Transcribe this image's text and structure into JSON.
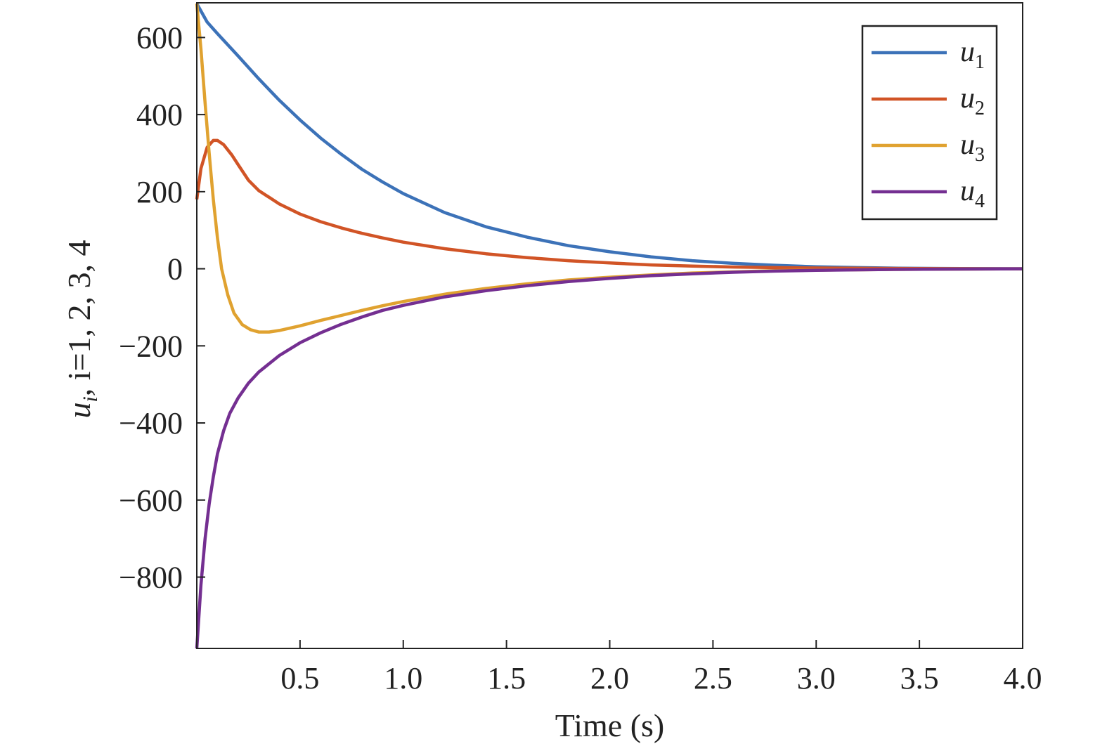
{
  "chart_data": {
    "type": "line",
    "xlabel": "Time (s)",
    "ylabel": {
      "main": "u",
      "sub": "i",
      "rest": ", i=1, 2, 3, 4"
    },
    "xlim": [
      0,
      4.0
    ],
    "ylim": [
      -985,
      690
    ],
    "x_ticks": [
      "0.5",
      "1.0",
      "1.5",
      "2.0",
      "2.5",
      "3.0",
      "3.5",
      "4.0"
    ],
    "y_ticks": [
      "600",
      "400",
      "200",
      "0",
      "−200",
      "−400",
      "−600",
      "−800"
    ],
    "grid": false,
    "legend_position": "top-right",
    "series": [
      {
        "name": "u",
        "sub": "1",
        "color": "#3c72b8",
        "points": [
          [
            0,
            688
          ],
          [
            0.05,
            640
          ],
          [
            0.1,
            610
          ],
          [
            0.2,
            552
          ],
          [
            0.3,
            493
          ],
          [
            0.4,
            437
          ],
          [
            0.5,
            386
          ],
          [
            0.6,
            339
          ],
          [
            0.7,
            297
          ],
          [
            0.8,
            258
          ],
          [
            0.9,
            225
          ],
          [
            1.0,
            195
          ],
          [
            1.2,
            146
          ],
          [
            1.4,
            109
          ],
          [
            1.6,
            82
          ],
          [
            1.8,
            60
          ],
          [
            2.0,
            44
          ],
          [
            2.2,
            31
          ],
          [
            2.4,
            21
          ],
          [
            2.6,
            14
          ],
          [
            2.8,
            9
          ],
          [
            3.0,
            5
          ],
          [
            3.2,
            3
          ],
          [
            3.4,
            1.5
          ],
          [
            3.6,
            0.8
          ],
          [
            3.8,
            0.3
          ],
          [
            4.0,
            0
          ]
        ]
      },
      {
        "name": "u",
        "sub": "2",
        "color": "#d15426",
        "points": [
          [
            0,
            180
          ],
          [
            0.02,
            260
          ],
          [
            0.05,
            315
          ],
          [
            0.08,
            333
          ],
          [
            0.1,
            333
          ],
          [
            0.13,
            322
          ],
          [
            0.17,
            295
          ],
          [
            0.2,
            270
          ],
          [
            0.25,
            230
          ],
          [
            0.3,
            203
          ],
          [
            0.4,
            168
          ],
          [
            0.5,
            142
          ],
          [
            0.6,
            122
          ],
          [
            0.7,
            106
          ],
          [
            0.8,
            92
          ],
          [
            0.9,
            80
          ],
          [
            1.0,
            69
          ],
          [
            1.2,
            52
          ],
          [
            1.4,
            39
          ],
          [
            1.6,
            29
          ],
          [
            1.8,
            21
          ],
          [
            2.0,
            15
          ],
          [
            2.2,
            10
          ],
          [
            2.4,
            7
          ],
          [
            2.6,
            4.5
          ],
          [
            2.8,
            3
          ],
          [
            3.0,
            2
          ],
          [
            3.3,
            1
          ],
          [
            3.6,
            0.4
          ],
          [
            4.0,
            0
          ]
        ]
      },
      {
        "name": "u",
        "sub": "3",
        "color": "#e0a230",
        "points": [
          [
            0,
            688
          ],
          [
            0.02,
            570
          ],
          [
            0.04,
            430
          ],
          [
            0.06,
            300
          ],
          [
            0.08,
            180
          ],
          [
            0.1,
            80
          ],
          [
            0.12,
            0
          ],
          [
            0.15,
            -68
          ],
          [
            0.18,
            -115
          ],
          [
            0.22,
            -145
          ],
          [
            0.26,
            -158
          ],
          [
            0.3,
            -164
          ],
          [
            0.35,
            -164
          ],
          [
            0.4,
            -160
          ],
          [
            0.5,
            -148
          ],
          [
            0.6,
            -134
          ],
          [
            0.7,
            -121
          ],
          [
            0.8,
            -108
          ],
          [
            0.9,
            -96
          ],
          [
            1.0,
            -85
          ],
          [
            1.2,
            -66
          ],
          [
            1.4,
            -51
          ],
          [
            1.6,
            -39
          ],
          [
            1.8,
            -29
          ],
          [
            2.0,
            -22
          ],
          [
            2.2,
            -16
          ],
          [
            2.4,
            -11
          ],
          [
            2.6,
            -8
          ],
          [
            2.8,
            -5
          ],
          [
            3.0,
            -3.5
          ],
          [
            3.3,
            -2
          ],
          [
            3.6,
            -1
          ],
          [
            4.0,
            0
          ]
        ]
      },
      {
        "name": "u",
        "sub": "4",
        "color": "#742f91",
        "points": [
          [
            0,
            -985
          ],
          [
            0.02,
            -820
          ],
          [
            0.04,
            -700
          ],
          [
            0.06,
            -610
          ],
          [
            0.08,
            -540
          ],
          [
            0.1,
            -480
          ],
          [
            0.13,
            -420
          ],
          [
            0.16,
            -375
          ],
          [
            0.2,
            -335
          ],
          [
            0.25,
            -297
          ],
          [
            0.3,
            -268
          ],
          [
            0.4,
            -225
          ],
          [
            0.5,
            -192
          ],
          [
            0.6,
            -166
          ],
          [
            0.7,
            -144
          ],
          [
            0.8,
            -125
          ],
          [
            0.9,
            -108
          ],
          [
            1.0,
            -95
          ],
          [
            1.2,
            -73
          ],
          [
            1.4,
            -57
          ],
          [
            1.6,
            -44
          ],
          [
            1.8,
            -33
          ],
          [
            2.0,
            -25
          ],
          [
            2.2,
            -18
          ],
          [
            2.4,
            -13
          ],
          [
            2.6,
            -9
          ],
          [
            2.8,
            -6
          ],
          [
            3.0,
            -4
          ],
          [
            3.3,
            -2
          ],
          [
            3.6,
            -1
          ],
          [
            4.0,
            0
          ]
        ]
      }
    ]
  }
}
